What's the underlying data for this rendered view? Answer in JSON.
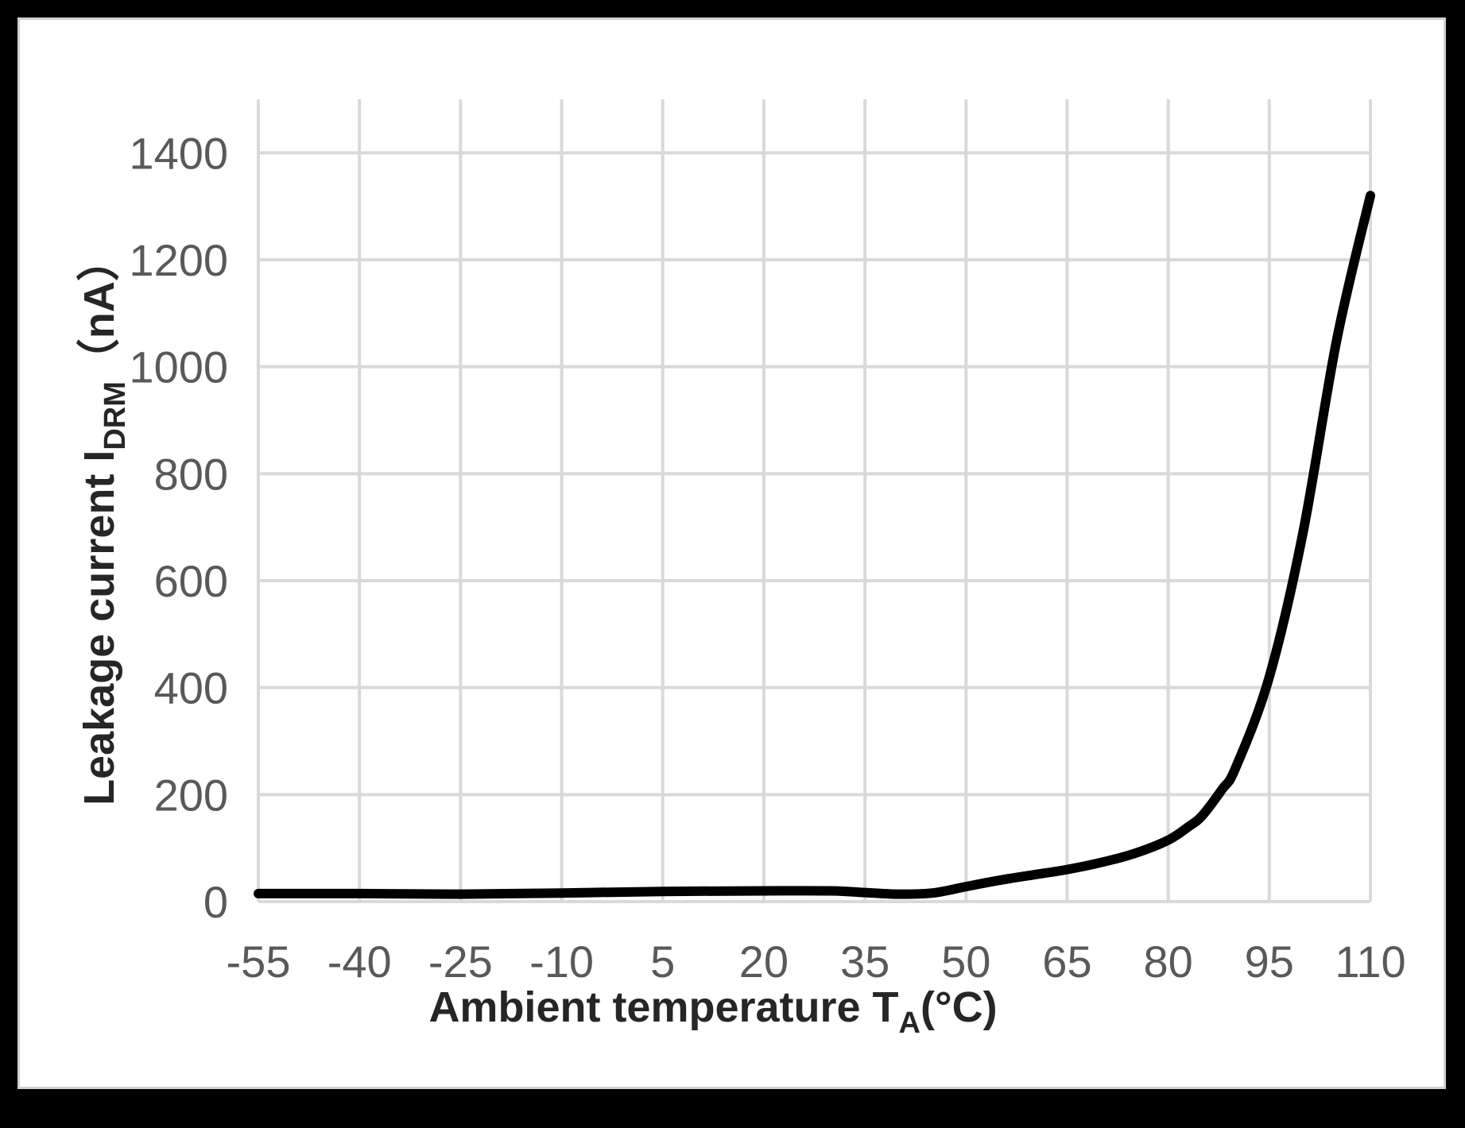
{
  "chart_data": {
    "type": "line",
    "title": "",
    "xlabel": "Ambient temperature T",
    "xlabel_subscript": "A",
    "xlabel_suffix": "(°C)",
    "ylabel": "Leakage current I",
    "ylabel_subscript": "DRM",
    "ylabel_suffix": "（nA）",
    "x_ticks": [
      -55,
      -40,
      -25,
      -10,
      5,
      20,
      35,
      50,
      65,
      80,
      95,
      110
    ],
    "y_ticks": [
      0,
      200,
      400,
      600,
      800,
      1000,
      1200,
      1400
    ],
    "xlim": [
      -55,
      110
    ],
    "ylim": [
      0,
      1500
    ],
    "grid": true,
    "series": [
      {
        "name": "Leakage current",
        "color": "#000000",
        "x": [
          -55,
          -40,
          -25,
          -10,
          5,
          20,
          30,
          35,
          40,
          45,
          50,
          55,
          60,
          65,
          70,
          75,
          80,
          83,
          85,
          88,
          90,
          95,
          100,
          105,
          110
        ],
        "y": [
          15,
          15,
          14,
          16,
          19,
          20,
          20,
          17,
          14,
          16,
          28,
          40,
          50,
          60,
          73,
          90,
          115,
          140,
          160,
          210,
          250,
          420,
          690,
          1050,
          1320
        ]
      }
    ]
  },
  "colors": {
    "background": "#000000",
    "plot_background": "#ffffff",
    "grid": "#d9d9d9",
    "tick_label": "#595959",
    "axis_title": "#262626",
    "line": "#000000"
  }
}
